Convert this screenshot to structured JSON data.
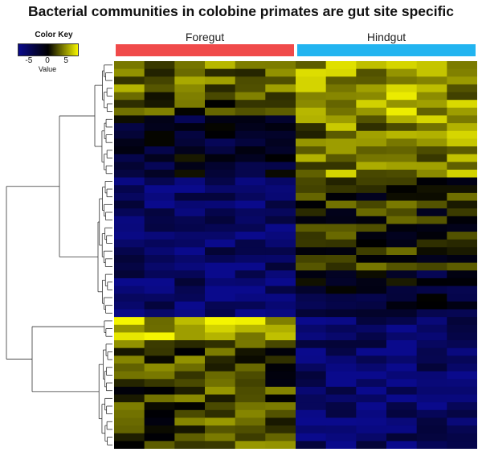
{
  "chart_data": {
    "type": "heatmap",
    "title": "Bacterial communities in colobine primates are gut site specific",
    "color_key": {
      "title": "Color Key",
      "label": "Value",
      "ticks": [
        "-5",
        "0",
        "5"
      ],
      "tick_values": [
        -5,
        0,
        5
      ],
      "range": [
        -8,
        8
      ],
      "colors": [
        "#0a0a8c",
        "#000000",
        "#f5f500"
      ]
    },
    "column_groups": [
      {
        "name": "Foregut",
        "color": "#f04a4a",
        "columns": 6
      },
      {
        "name": "Hindgut",
        "color": "#22b4f0",
        "columns": 6
      }
    ],
    "row_count": 50,
    "column_count": 12,
    "row_blocks": [
      {
        "rows": 7,
        "foregut": 3,
        "hindgut": 5
      },
      {
        "rows": 8,
        "foregut": -2,
        "hindgut": 4
      },
      {
        "rows": 12,
        "foregut": -6,
        "hindgut": 1
      },
      {
        "rows": 6,
        "foregut": -6,
        "hindgut": -2
      },
      {
        "rows": 3,
        "foregut": 6,
        "hindgut": -6
      },
      {
        "rows": 14,
        "foregut": 2,
        "hindgut": -6
      }
    ]
  }
}
